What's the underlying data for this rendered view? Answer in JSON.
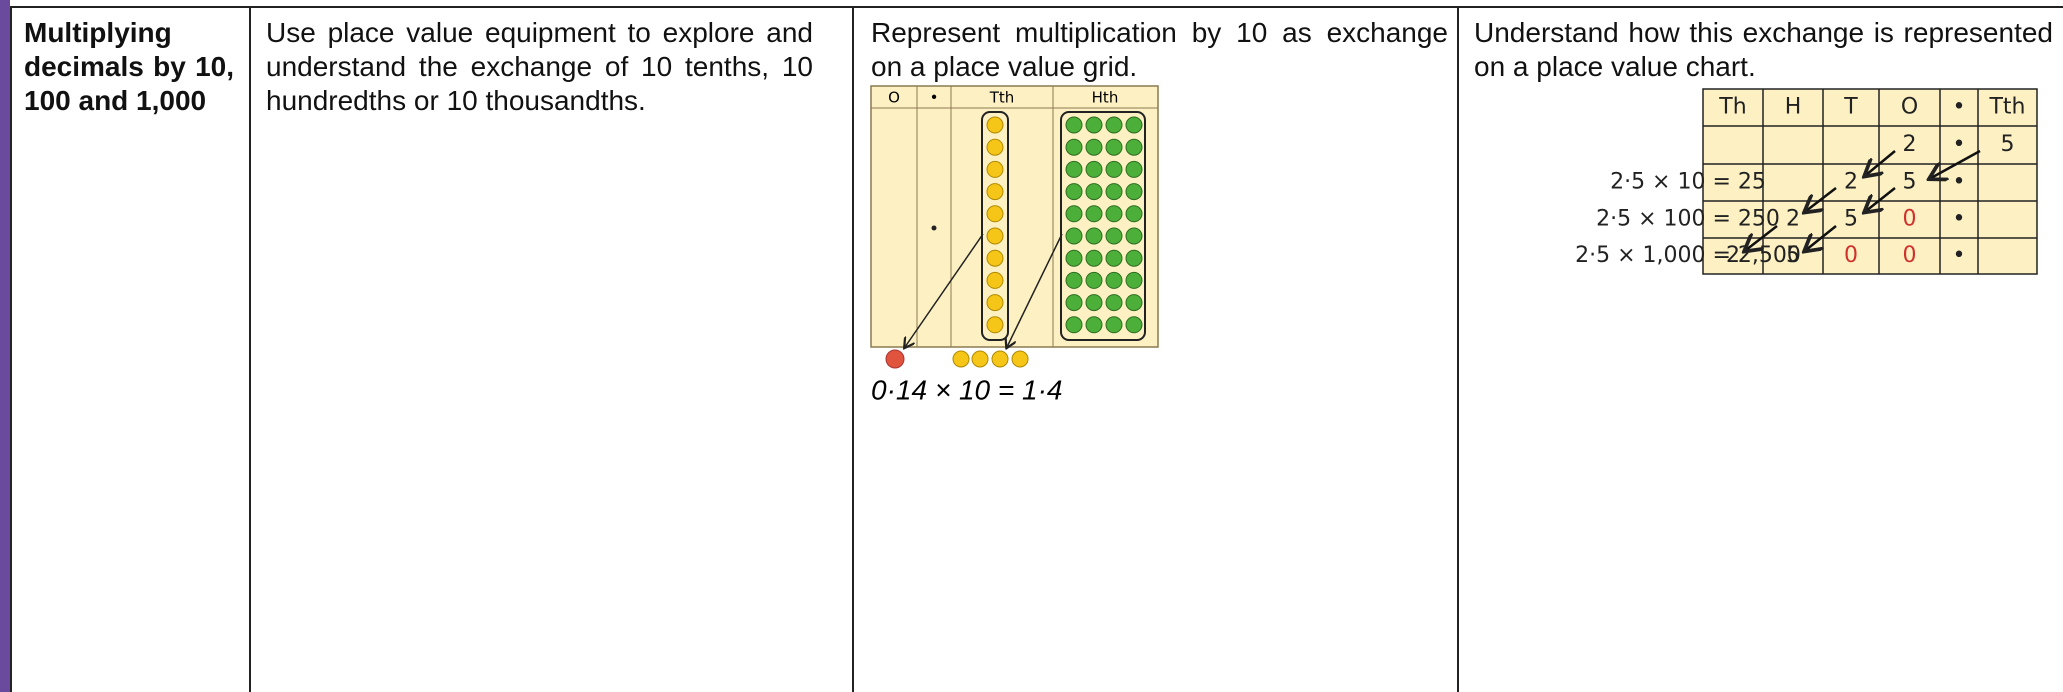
{
  "row": {
    "title": "Multiplying decimals by 10, 100 and 1,000",
    "col2": "Use place value equipment to explore and understand the exchange of 10 tenths, 10 hundredths or 10 thousandths.",
    "col3": {
      "text": "Represent multiplication by 10 as exchange on a place value grid.",
      "grid_headers": [
        "O",
        "•",
        "Tth",
        "Hth"
      ],
      "equation": "0·14 × 10 = 1·4"
    },
    "col4": {
      "text": "Understand how this exchange is represented on a place value chart.",
      "headers": [
        "Th",
        "H",
        "T",
        "O",
        "•",
        "Tth"
      ],
      "equations": [
        "2·5 × 10 = 25",
        "2·5 × 100 = 250",
        "2·5 × 1,000 = 2,500"
      ],
      "rows": [
        [
          {
            "text": ""
          },
          {
            "text": ""
          },
          {
            "text": ""
          },
          {
            "text": "2"
          },
          {
            "text": "•"
          },
          {
            "text": "5"
          }
        ],
        [
          {
            "text": ""
          },
          {
            "text": ""
          },
          {
            "text": "2"
          },
          {
            "text": "5"
          },
          {
            "text": "•"
          },
          {
            "text": ""
          }
        ],
        [
          {
            "text": ""
          },
          {
            "text": "2"
          },
          {
            "text": "5"
          },
          {
            "text": "0",
            "color": "#d0312d"
          },
          {
            "text": "•"
          },
          {
            "text": ""
          }
        ],
        [
          {
            "text": "2"
          },
          {
            "text": "5"
          },
          {
            "text": "0",
            "color": "#d0312d"
          },
          {
            "text": "0",
            "color": "#d0312d"
          },
          {
            "text": "•"
          },
          {
            "text": ""
          }
        ]
      ]
    }
  }
}
